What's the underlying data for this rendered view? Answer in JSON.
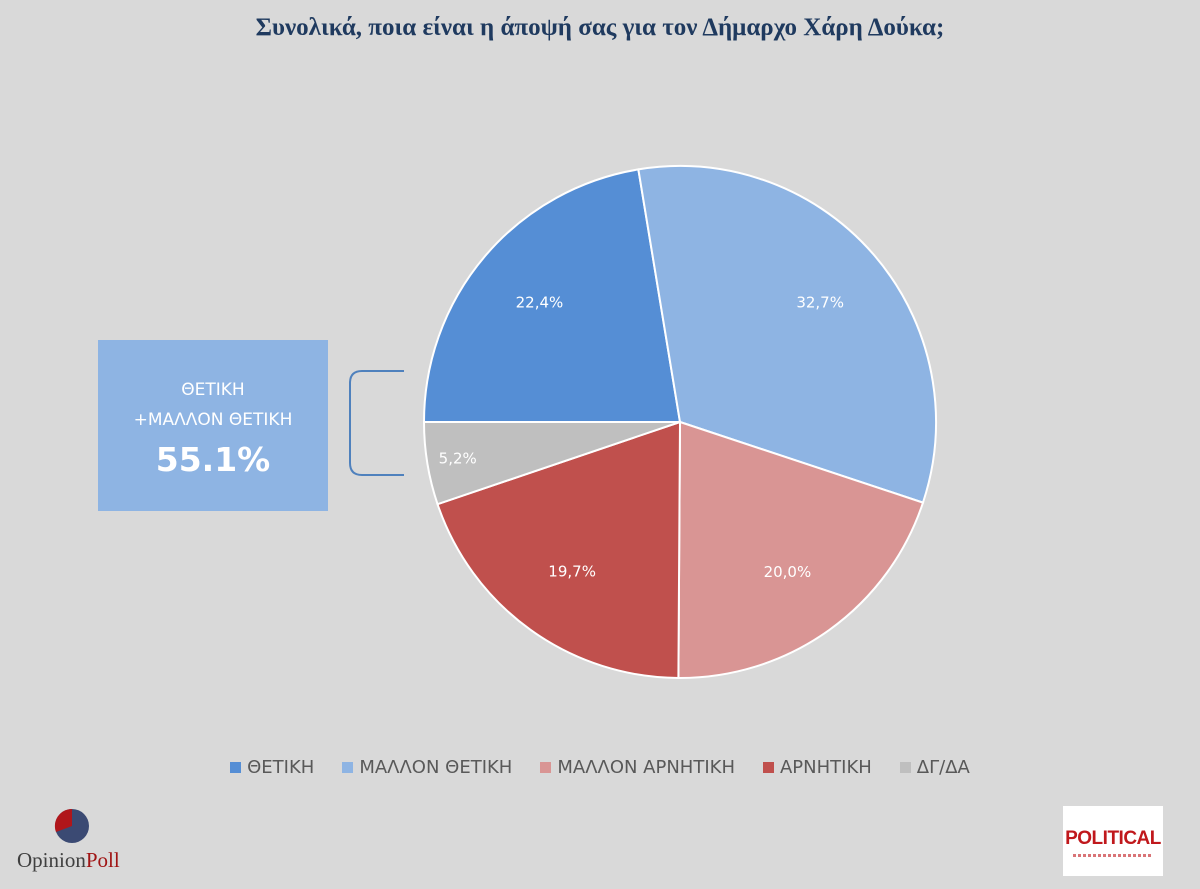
{
  "title": "Συνολικά, ποια είναι η άποψή σας για τον Δήμαρχο Χάρη Δούκα;",
  "callout": {
    "line1": "ΘΕΤΙΚΗ",
    "line2": "+ΜΑΛΛΟΝ ΘΕΤΙΚΗ",
    "value": "55.1%"
  },
  "logos": {
    "left_part1": "Opinion",
    "left_part2": "Poll",
    "right": "POLITICAL"
  },
  "chart_data": {
    "type": "pie",
    "title": "Συνολικά, ποια είναι η άποψή σας για τον Δήμαρχο Χάρη Δούκα;",
    "categories": [
      "ΘΕΤΙΚΗ",
      "ΜΑΛΛΟΝ ΘΕΤΙΚΗ",
      "ΜΑΛΛΟΝ ΑΡΝΗΤΙΚΗ",
      "ΑΡΝΗΤΙΚΗ",
      "ΔΓ/ΔΑ"
    ],
    "values": [
      22.4,
      32.7,
      20.0,
      19.7,
      5.2
    ],
    "labels": [
      "22,4%",
      "32,7%",
      "20,0%",
      "19,7%",
      "5,2%"
    ],
    "colors": [
      "#558ed5",
      "#8eb4e3",
      "#d99594",
      "#c0504d",
      "#bfbfbf"
    ],
    "legend_position": "bottom"
  }
}
